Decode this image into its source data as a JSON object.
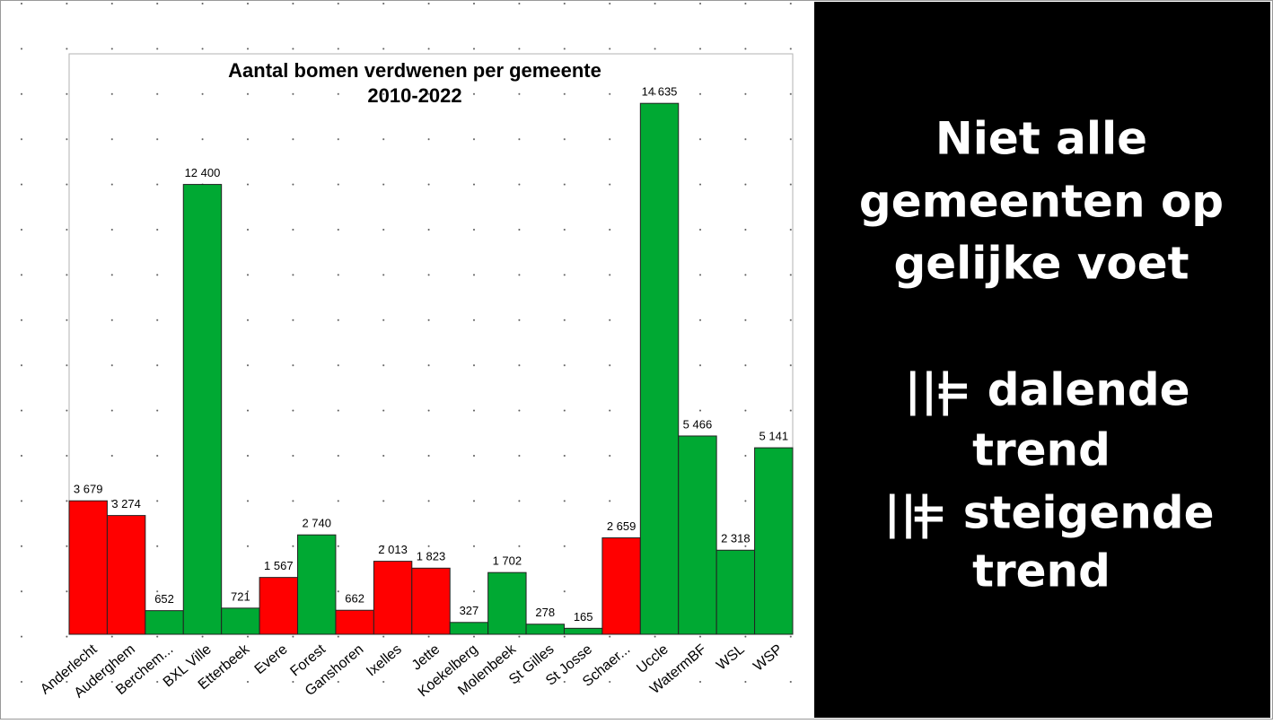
{
  "chart_data": {
    "type": "bar",
    "title": "Aantal bomen verdwenen per gemeente",
    "subtitle": "2010-2022",
    "categories": [
      "Anderlecht",
      "Auderghem",
      "Berchem...",
      "BXL Ville",
      "Etterbeek",
      "Evere",
      "Forest",
      "Ganshoren",
      "Ixelles",
      "Jette",
      "Koekelberg",
      "Molenbeek",
      "St Gilles",
      "St Josse",
      "Schaer...",
      "Uccle",
      "WatermBF",
      "WSL",
      "WSP"
    ],
    "values": [
      3679,
      3274,
      652,
      12400,
      721,
      1567,
      2740,
      662,
      2013,
      1823,
      327,
      1702,
      278,
      165,
      2659,
      14635,
      5466,
      2318,
      5141
    ],
    "value_labels": [
      "3 679",
      "3 274",
      "652",
      "12 400",
      "721",
      "1 567",
      "2 740",
      "662",
      "2 013",
      "1 823",
      "327",
      "1 702",
      "278",
      "165",
      "2 659",
      "14 635",
      "5 466",
      "2 318",
      "5 141"
    ],
    "colors": [
      "#ff0000",
      "#ff0000",
      "#00a933",
      "#00a933",
      "#00a933",
      "#ff0000",
      "#00a933",
      "#ff0000",
      "#ff0000",
      "#ff0000",
      "#00a933",
      "#00a933",
      "#00a933",
      "#00a933",
      "#ff0000",
      "#00a933",
      "#00a933",
      "#00a933",
      "#00a933"
    ],
    "ylim": [
      0,
      16000
    ]
  },
  "panel": {
    "heading": [
      "Niet alle",
      "gemeenten op",
      "gelijke voet"
    ],
    "legend": [
      {
        "symbol": "|||",
        "color": "#00a933",
        "text": "= dalende",
        "text2": "trend"
      },
      {
        "symbol": "|||",
        "color": "#ff0000",
        "text": "= steigende",
        "text2": "trend"
      }
    ]
  }
}
